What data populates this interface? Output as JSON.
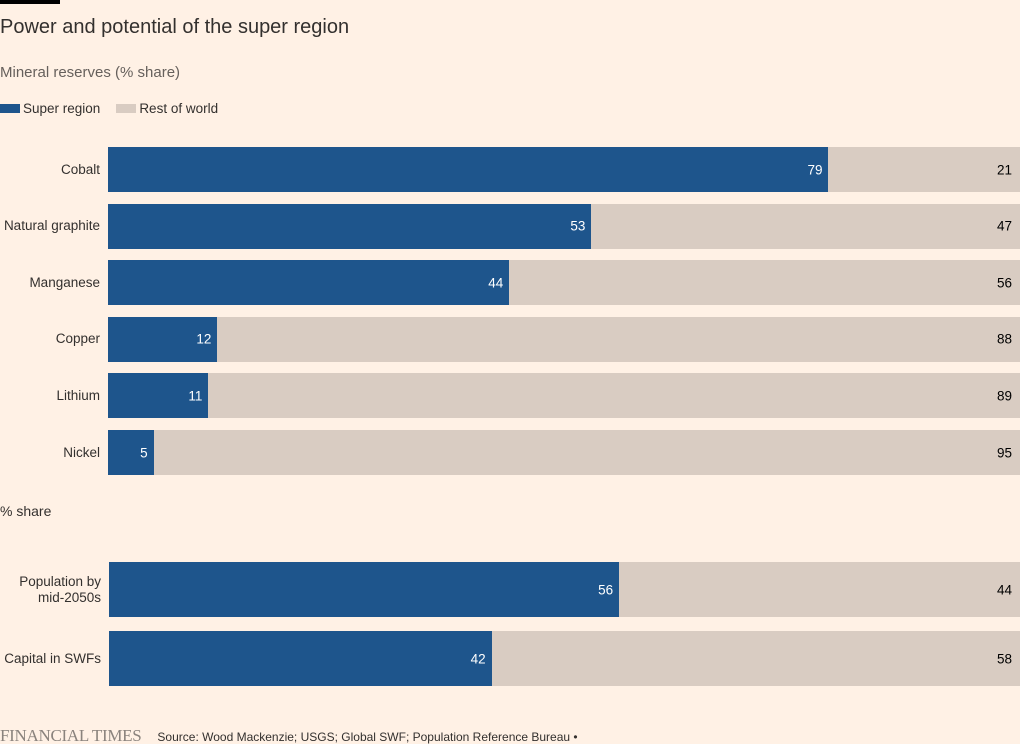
{
  "title": "Power and potential of the super region",
  "colors": {
    "super": "#1e558c",
    "rest": "#d9ccc2",
    "bg": "#fff1e5"
  },
  "legend": {
    "super": "Super region",
    "rest": "Rest of world"
  },
  "chart_data": [
    {
      "type": "bar",
      "stacked": true,
      "orientation": "horizontal",
      "title": "Mineral reserves (% share)",
      "categories": [
        "Cobalt",
        "Natural graphite",
        "Manganese",
        "Copper",
        "Lithium",
        "Nickel"
      ],
      "series": [
        {
          "name": "Super region",
          "values": [
            79,
            53,
            44,
            12,
            11,
            5
          ]
        },
        {
          "name": "Rest of world",
          "values": [
            21,
            47,
            56,
            88,
            89,
            95
          ]
        }
      ],
      "xlim": [
        0,
        100
      ]
    },
    {
      "type": "bar",
      "stacked": true,
      "orientation": "horizontal",
      "title": "% share",
      "categories": [
        "Population by mid-2050s",
        "Capital in SWFs"
      ],
      "series": [
        {
          "name": "Super region",
          "values": [
            56,
            42
          ]
        },
        {
          "name": "Rest of world",
          "values": [
            44,
            58
          ]
        }
      ],
      "xlim": [
        0,
        100
      ]
    }
  ],
  "footer": {
    "brand": "FINANCIAL TIMES",
    "source": "Source: Wood Mackenzie; USGS; Global SWF; Population Reference Bureau •"
  }
}
